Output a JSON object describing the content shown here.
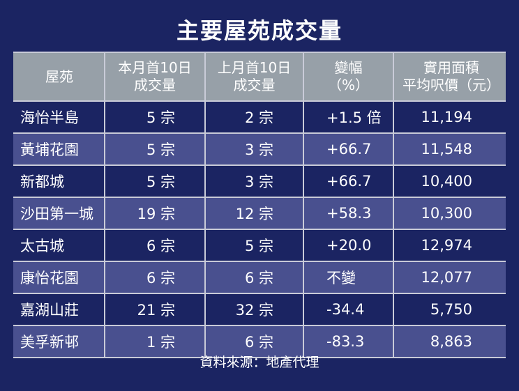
{
  "title": "主要屋苑成交量",
  "source": "資料來源：地產代理",
  "chart_data": {
    "type": "table",
    "title": "主要屋苑成交量",
    "columns": [
      "屋苑",
      "本月首10日成交量",
      "上月首10日成交量",
      "變幅（%）",
      "實用面積平均呎價（元）"
    ],
    "header": [
      {
        "line1": "屋苑",
        "line2": ""
      },
      {
        "line1": "本月首10日",
        "line2": "成交量"
      },
      {
        "line1": "上月首10日",
        "line2": "成交量"
      },
      {
        "line1": "變幅",
        "line2": "（%）"
      },
      {
        "line1": "實用面積",
        "line2": "平均呎價（元）"
      }
    ],
    "rows": [
      [
        "海怡半島",
        "5 宗",
        "2 宗",
        "+1.5 倍",
        "11,194"
      ],
      [
        "黃埔花園",
        "5 宗",
        "3 宗",
        "+66.7",
        "11,548"
      ],
      [
        "新都城",
        "5 宗",
        "3 宗",
        "+66.7",
        "10,400"
      ],
      [
        "沙田第一城",
        "19 宗",
        "12 宗",
        "+58.3",
        "10,300"
      ],
      [
        "太古城",
        "6 宗",
        "5 宗",
        "+20.0",
        "12,974"
      ],
      [
        "康怡花園",
        "6 宗",
        "6 宗",
        "不變",
        "12,077"
      ],
      [
        "嘉湖山莊",
        "21 宗",
        "32 宗",
        "-34.4",
        "5,750"
      ],
      [
        "美孚新邨",
        "1 宗",
        "6 宗",
        "-83.3",
        "8,863"
      ]
    ]
  },
  "colors": {
    "background": "#1b2462",
    "header_background": "#97a0a8",
    "alternate_row": "#49508f",
    "grid_lines": "#c9cbd8",
    "text": "#ffffff"
  }
}
